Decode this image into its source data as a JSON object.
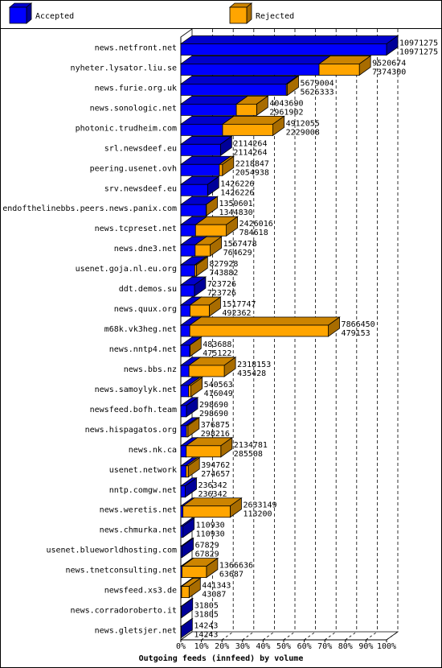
{
  "chart_data": {
    "type": "bar",
    "orientation": "horizontal",
    "style": "3d-stacked-overlay",
    "title": "Outgoing feeds (innfeed) by volume",
    "legend_position": "top",
    "grid": true,
    "xlim": [
      0,
      100
    ],
    "x_unit": "%",
    "x_ticks": [
      "0%",
      "10%",
      "20%",
      "30%",
      "40%",
      "50%",
      "60%",
      "70%",
      "80%",
      "90%",
      "100%"
    ],
    "series": [
      {
        "name": "Accepted",
        "color": "#0000ff"
      },
      {
        "name": "Rejected",
        "color": "#ffa500"
      }
    ],
    "categories": [
      "news.netfront.net",
      "nyheter.lysator.liu.se",
      "news.furie.org.uk",
      "news.sonologic.net",
      "photonic.trudheim.com",
      "srl.newsdeef.eu",
      "peering.usenet.ovh",
      "srv.newsdeef.eu",
      "endofthelinebbs.peers.news.panix.com",
      "news.tcpreset.net",
      "news.dne3.net",
      "usenet.goja.nl.eu.org",
      "ddt.demos.su",
      "news.quux.org",
      "m68k.vk3heg.net",
      "news.nntp4.net",
      "news.bbs.nz",
      "news.samoylyk.net",
      "newsfeed.bofh.team",
      "news.hispagatos.org",
      "news.nk.ca",
      "usenet.network",
      "nntp.comgw.net",
      "news.weretis.net",
      "news.chmurka.net",
      "usenet.blueworldhosting.com",
      "news.tnetconsulting.net",
      "newsfeed.xs3.de",
      "news.corradoroberto.it",
      "news.gletsjer.net"
    ],
    "offered": [
      10971275,
      9520674,
      5679004,
      4043690,
      4912055,
      2114264,
      2218847,
      1426226,
      1350601,
      2426016,
      1567478,
      827928,
      723726,
      1517747,
      7866450,
      483688,
      2318153,
      540563,
      298690,
      376875,
      2134781,
      394762,
      236342,
      2633149,
      110930,
      67829,
      1366636,
      441343,
      31805,
      14243
    ],
    "accepted": [
      10971275,
      7374300,
      5626333,
      2961902,
      2229008,
      2114264,
      2054938,
      1426226,
      1344830,
      784618,
      764629,
      743882,
      723726,
      492362,
      479153,
      475122,
      435428,
      416049,
      298690,
      298216,
      285508,
      274657,
      236342,
      113200,
      110930,
      67829,
      63687,
      43087,
      31805,
      14243
    ]
  }
}
